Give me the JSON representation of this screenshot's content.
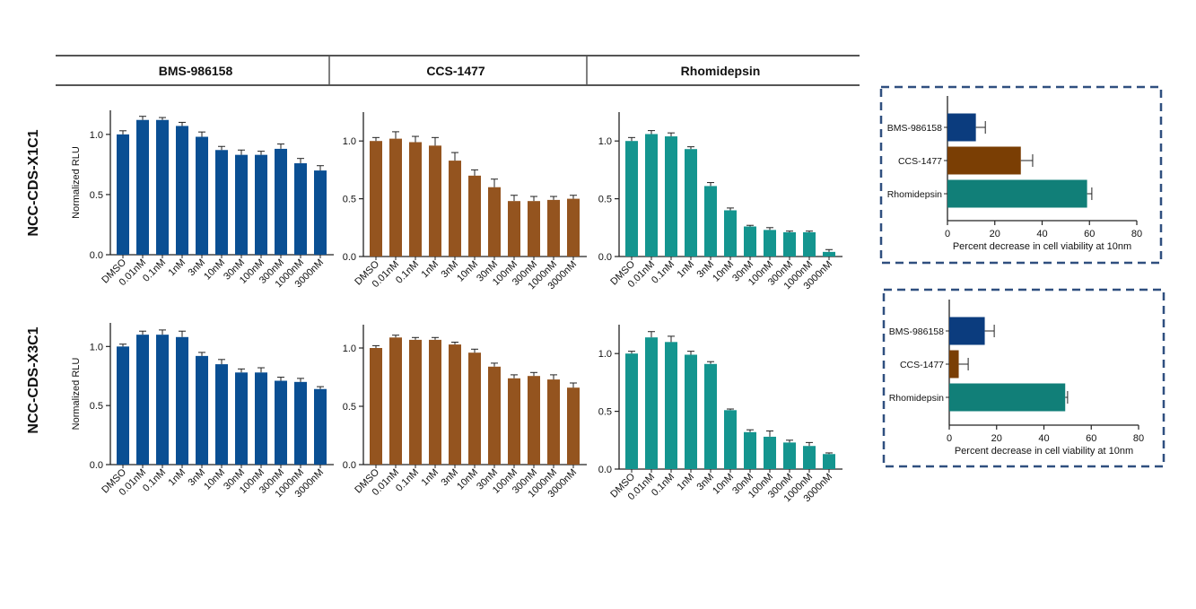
{
  "header": {
    "columns": [
      "BMS-986158",
      "CCS-1477",
      "Rhomidepsin"
    ]
  },
  "rows": [
    "NCC-CDS-X1C1",
    "NCC-CDS-X3C1"
  ],
  "colors": {
    "BMS-986158": "#0a4f93",
    "CCS-1477": "#94541f",
    "Rhomidepsin": "#14958f",
    "summary_bms": "#0b3c7e",
    "summary_ccs": "#7a3e04",
    "summary_rho": "#117f78",
    "frame": "#2f4f7f"
  },
  "chart_data": [
    {
      "type": "bar",
      "id": "x1c1-bms",
      "row": "NCC-CDS-X1C1",
      "compound": "BMS-986158",
      "categories": [
        "DMSO",
        "0.01nM",
        "0.1nM",
        "1nM",
        "3nM",
        "10nM",
        "30nM",
        "100nM",
        "300nM",
        "1000nM",
        "3000nM"
      ],
      "values": [
        1.0,
        1.12,
        1.12,
        1.07,
        0.98,
        0.87,
        0.83,
        0.83,
        0.88,
        0.76,
        0.7
      ],
      "errors": [
        0.03,
        0.03,
        0.02,
        0.03,
        0.04,
        0.03,
        0.04,
        0.03,
        0.04,
        0.04,
        0.04
      ],
      "ylabel": "Normalized RLU",
      "ylim": [
        0,
        1.2
      ],
      "yticks": [
        "0.0",
        "0.5",
        "1.0"
      ]
    },
    {
      "type": "bar",
      "id": "x1c1-ccs",
      "row": "NCC-CDS-X1C1",
      "compound": "CCS-1477",
      "categories": [
        "DMSO",
        "0.01nM",
        "0.1nM",
        "1nM",
        "3nM",
        "10nM",
        "30nM",
        "100nM",
        "300nM",
        "1000nM",
        "3000nM"
      ],
      "values": [
        1.0,
        1.02,
        0.99,
        0.96,
        0.83,
        0.7,
        0.6,
        0.48,
        0.48,
        0.49,
        0.5
      ],
      "errors": [
        0.03,
        0.06,
        0.05,
        0.07,
        0.07,
        0.05,
        0.07,
        0.05,
        0.04,
        0.03,
        0.03
      ],
      "ylabel": "",
      "ylim": [
        0,
        1.25
      ],
      "yticks": [
        "0.0",
        "0.5",
        "1.0"
      ]
    },
    {
      "type": "bar",
      "id": "x1c1-rho",
      "row": "NCC-CDS-X1C1",
      "compound": "Rhomidepsin",
      "categories": [
        "DMSO",
        "0.01nM",
        "0.1nM",
        "1nM",
        "3nM",
        "10nM",
        "30nM",
        "100nM",
        "300nM",
        "1000nM",
        "3000nM"
      ],
      "values": [
        1.0,
        1.06,
        1.04,
        0.93,
        0.61,
        0.4,
        0.26,
        0.23,
        0.21,
        0.21,
        0.04
      ],
      "errors": [
        0.03,
        0.03,
        0.03,
        0.02,
        0.03,
        0.02,
        0.01,
        0.02,
        0.01,
        0.01,
        0.02
      ],
      "ylabel": "",
      "ylim": [
        0,
        1.25
      ],
      "yticks": [
        "0.0",
        "0.5",
        "1.0"
      ]
    },
    {
      "type": "bar",
      "id": "x3c1-bms",
      "row": "NCC-CDS-X3C1",
      "compound": "BMS-986158",
      "categories": [
        "DMSO",
        "0.01nM",
        "0.1nM",
        "1nM",
        "3nM",
        "10nM",
        "30nM",
        "100nM",
        "300nM",
        "1000nM",
        "3000nM"
      ],
      "values": [
        1.0,
        1.1,
        1.1,
        1.08,
        0.92,
        0.85,
        0.78,
        0.78,
        0.71,
        0.7,
        0.64
      ],
      "errors": [
        0.02,
        0.03,
        0.04,
        0.05,
        0.03,
        0.04,
        0.03,
        0.04,
        0.03,
        0.03,
        0.02
      ],
      "ylabel": "Normalized RLU",
      "ylim": [
        0,
        1.2
      ],
      "yticks": [
        "0.0",
        "0.5",
        "1.0"
      ]
    },
    {
      "type": "bar",
      "id": "x3c1-ccs",
      "row": "NCC-CDS-X3C1",
      "compound": "CCS-1477",
      "categories": [
        "DMSO",
        "0.01nM",
        "0.1nM",
        "1nM",
        "3nM",
        "10nM",
        "30nM",
        "100nM",
        "300nM",
        "1000nM",
        "3000nM"
      ],
      "values": [
        1.0,
        1.09,
        1.07,
        1.07,
        1.03,
        0.96,
        0.84,
        0.74,
        0.76,
        0.73,
        0.66
      ],
      "errors": [
        0.02,
        0.02,
        0.02,
        0.02,
        0.02,
        0.03,
        0.03,
        0.03,
        0.03,
        0.04,
        0.04
      ],
      "ylabel": "",
      "ylim": [
        0,
        1.2
      ],
      "yticks": [
        "0.0",
        "0.5",
        "1.0"
      ]
    },
    {
      "type": "bar",
      "id": "x3c1-rho",
      "row": "NCC-CDS-X3C1",
      "compound": "Rhomidepsin",
      "categories": [
        "DMSO",
        "0.01nM",
        "0.1nM",
        "1nM",
        "3nM",
        "10nM",
        "30nM",
        "100nM",
        "300nM",
        "1000nM",
        "3000nM"
      ],
      "values": [
        1.0,
        1.14,
        1.1,
        0.99,
        0.91,
        0.51,
        0.32,
        0.28,
        0.23,
        0.2,
        0.13
      ],
      "errors": [
        0.02,
        0.05,
        0.05,
        0.03,
        0.02,
        0.01,
        0.02,
        0.05,
        0.02,
        0.03,
        0.01
      ],
      "ylabel": "",
      "ylim": [
        0,
        1.25
      ],
      "yticks": [
        "0.0",
        "0.5",
        "1.0"
      ]
    },
    {
      "type": "bar",
      "orientation": "horizontal",
      "id": "summary-x1c1",
      "row": "NCC-CDS-X1C1",
      "categories": [
        "BMS-986158",
        "CCS-1477",
        "Rhomidepsin"
      ],
      "values": [
        12,
        31,
        59
      ],
      "errors": [
        4,
        5,
        2
      ],
      "xlabel": "Percent decrease in cell viability at 10nm",
      "xlim": [
        0,
        80
      ],
      "xticks": [
        "0",
        "20",
        "40",
        "60",
        "80"
      ]
    },
    {
      "type": "bar",
      "orientation": "horizontal",
      "id": "summary-x3c1",
      "row": "NCC-CDS-X3C1",
      "categories": [
        "BMS-986158",
        "CCS-1477",
        "Rhomidepsin"
      ],
      "values": [
        15,
        4,
        49
      ],
      "errors": [
        4,
        4,
        1
      ],
      "xlabel": "Percent decrease in cell viability at 10nm",
      "xlim": [
        0,
        80
      ],
      "xticks": [
        "0",
        "20",
        "40",
        "60",
        "80"
      ]
    }
  ]
}
